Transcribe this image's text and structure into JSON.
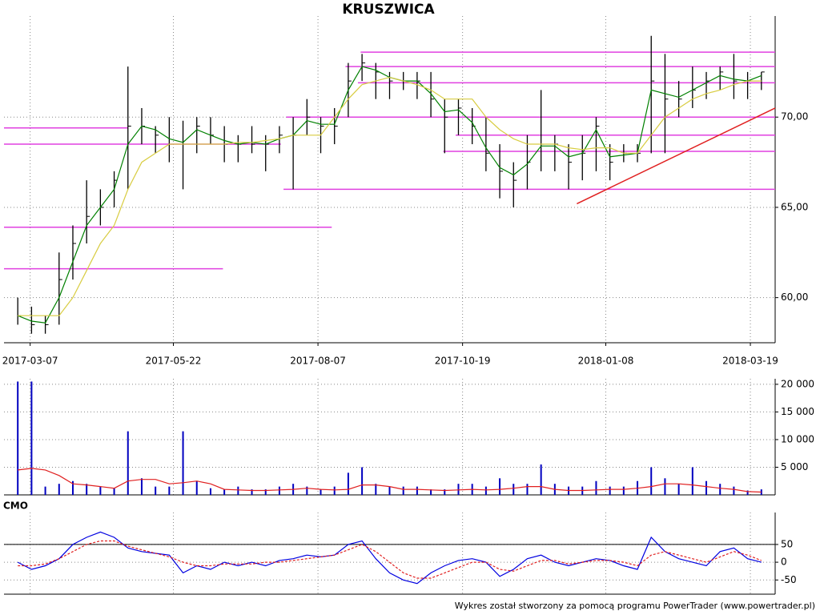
{
  "chart_data": [
    {
      "type": "ohlc",
      "title": "KRUSZWICA",
      "color": "#000000",
      "high": [
        60,
        59.5,
        59,
        62.5,
        64,
        66.5,
        66,
        67,
        72.8,
        70.5,
        69.5,
        70,
        69.8,
        70,
        70,
        69.5,
        69,
        69.5,
        69,
        69.5,
        70,
        71,
        70,
        70.5,
        73,
        73.5,
        73,
        72.5,
        72.5,
        72.5,
        72.5,
        71,
        71,
        70.5,
        70,
        68.5,
        67.5,
        69,
        71.5,
        69,
        68.5,
        69,
        70,
        68.5,
        68.5,
        68.5,
        74.5,
        73.5,
        72,
        72.8,
        72.5,
        72.8,
        73.5,
        72.5,
        72.5
      ],
      "low": [
        58.5,
        58,
        58,
        58.5,
        61,
        63,
        64,
        65,
        66,
        68.5,
        68,
        67.5,
        66,
        68,
        68.5,
        67.5,
        67.5,
        68,
        67,
        68,
        66,
        69,
        68,
        68.5,
        70,
        72,
        71,
        71,
        71.5,
        71,
        70,
        68,
        69,
        68.5,
        67,
        65.5,
        65,
        66,
        67,
        67,
        66,
        66.5,
        67,
        66.5,
        67.5,
        67.5,
        68,
        68,
        70,
        70.5,
        71,
        71.5,
        71,
        71,
        71.5
      ],
      "close": [
        59,
        58.5,
        58.5,
        61,
        63,
        64.5,
        65,
        66.5,
        69.5,
        69.5,
        69,
        68.5,
        68.5,
        69.5,
        69,
        68.5,
        68.5,
        68.5,
        68.5,
        69,
        69,
        70,
        69.5,
        69.5,
        72,
        73,
        72.5,
        72,
        72,
        72,
        71,
        70,
        70.5,
        69.5,
        68,
        67,
        66.5,
        67.5,
        68.5,
        68.5,
        67.5,
        68,
        69.5,
        67.5,
        68,
        68,
        72,
        71,
        71,
        71.5,
        72,
        72.5,
        72,
        72,
        72.5
      ],
      "lines": [
        {
          "color": "#008000",
          "values": [
            59,
            58.7,
            58.6,
            60,
            62,
            64,
            65,
            66,
            68.5,
            69.5,
            69.3,
            68.8,
            68.6,
            69.3,
            69,
            68.7,
            68.5,
            68.6,
            68.5,
            68.8,
            69,
            69.8,
            69.6,
            69.6,
            71.5,
            72.8,
            72.6,
            72.2,
            72,
            72,
            71.3,
            70.3,
            70.4,
            69.7,
            68.3,
            67.2,
            66.8,
            67.4,
            68.4,
            68.4,
            67.8,
            68,
            69.3,
            67.8,
            67.9,
            68,
            71.5,
            71.3,
            71.1,
            71.5,
            71.9,
            72.3,
            72.1,
            72,
            72.3
          ]
        },
        {
          "color": "#d8cc40",
          "values": [
            59,
            59,
            59,
            59,
            60,
            61.5,
            63,
            64,
            66,
            67.5,
            68,
            68.5,
            68.5,
            68.5,
            68.5,
            68.5,
            68.6,
            68.6,
            68.7,
            68.8,
            69,
            69,
            69,
            70,
            71,
            71.8,
            72,
            72.2,
            72,
            71.8,
            71.5,
            71,
            71,
            71,
            70,
            69.3,
            68.8,
            68.5,
            68.5,
            68.5,
            68.3,
            68.2,
            68.3,
            68.3,
            68,
            68,
            69,
            70,
            70.5,
            71,
            71.3,
            71.5,
            71.8,
            72,
            72
          ]
        }
      ],
      "hline_color": "#e040e0",
      "hlines": [
        {
          "value": 69.4,
          "x": [
            -1,
            8.0
          ]
        },
        {
          "value": 68.5,
          "x": [
            -1,
            19.1
          ]
        },
        {
          "value": 63.9,
          "x": [
            -1,
            22.8
          ]
        },
        {
          "value": 61.6,
          "x": [
            -1,
            14.9
          ]
        },
        {
          "value": 66.0,
          "x": [
            19.3,
            55
          ]
        },
        {
          "value": 73.6,
          "x": [
            24.9,
            55
          ]
        },
        {
          "value": 72.8,
          "x": [
            23.8,
            55
          ]
        },
        {
          "value": 71.9,
          "x": [
            24.7,
            55
          ]
        },
        {
          "value": 70.0,
          "x": [
            19.5,
            55
          ]
        },
        {
          "value": 69.0,
          "x": [
            31.8,
            55
          ]
        },
        {
          "value": 68.1,
          "x": [
            30.9,
            55
          ]
        }
      ],
      "trendline": {
        "x": [
          40.6,
          55
        ],
        "y": [
          65.2,
          70.5
        ],
        "color": "#e02020"
      },
      "xlim": [
        -1,
        55
      ],
      "ylim": [
        57.5,
        75.6
      ],
      "xticks": [
        {
          "value": 0.9,
          "label": "2017-03-07"
        },
        {
          "value": 11.3,
          "label": "2017-05-22"
        },
        {
          "value": 21.8,
          "label": "2017-08-07"
        },
        {
          "value": 32.3,
          "label": "2017-10-19"
        },
        {
          "value": 42.7,
          "label": "2018-01-08"
        },
        {
          "value": 53.2,
          "label": "2018-03-19"
        }
      ],
      "yticks": [
        {
          "value": 60,
          "label": "60,00"
        },
        {
          "value": 65,
          "label": "65,00"
        },
        {
          "value": 70,
          "label": "70,00"
        }
      ],
      "grid": true
    },
    {
      "type": "bar",
      "color": "#0000c0",
      "values": [
        20500,
        20500,
        1500,
        2000,
        2500,
        2000,
        1500,
        1200,
        11500,
        3000,
        1500,
        1500,
        11500,
        2500,
        1200,
        1000,
        1500,
        1000,
        1000,
        1500,
        2000,
        1500,
        1000,
        1500,
        4000,
        5000,
        2000,
        1500,
        1500,
        1500,
        1000,
        1000,
        2000,
        2000,
        1500,
        3000,
        2000,
        2000,
        5500,
        2000,
        1500,
        1500,
        2500,
        1500,
        1500,
        2500,
        5000,
        3000,
        2000,
        5000,
        2500,
        2000,
        1500,
        800,
        1000
      ],
      "lines": [
        {
          "color": "#e02020",
          "values": [
            4500,
            4800,
            4500,
            3500,
            2000,
            1800,
            1500,
            1200,
            2500,
            2800,
            2800,
            2000,
            2200,
            2500,
            2000,
            1000,
            900,
            800,
            800,
            900,
            1000,
            1200,
            1000,
            900,
            1000,
            1800,
            1800,
            1500,
            1000,
            1000,
            900,
            800,
            900,
            1000,
            900,
            1000,
            1200,
            1500,
            1500,
            1000,
            800,
            800,
            900,
            1000,
            1000,
            1200,
            1500,
            2000,
            2000,
            1800,
            1500,
            1200,
            1000,
            600,
            500
          ]
        }
      ],
      "xlim": [
        -1,
        55
      ],
      "ylim": [
        0,
        21000
      ],
      "yticks": [
        {
          "value": 5000,
          "label": "5 000"
        },
        {
          "value": 10000,
          "label": "10 000"
        },
        {
          "value": 15000,
          "label": "15 000"
        },
        {
          "value": 20000,
          "label": "20 000"
        }
      ],
      "grid": true
    },
    {
      "type": "line",
      "title": "CMO",
      "lines": [
        {
          "color": "#0000e0",
          "values": [
            0,
            -20,
            -10,
            10,
            50,
            70,
            85,
            70,
            40,
            30,
            25,
            20,
            -30,
            -10,
            -20,
            0,
            -10,
            0,
            -10,
            5,
            10,
            20,
            15,
            20,
            50,
            60,
            10,
            -30,
            -50,
            -60,
            -30,
            -10,
            5,
            10,
            0,
            -40,
            -20,
            10,
            20,
            0,
            -10,
            0,
            10,
            5,
            -10,
            -20,
            70,
            30,
            10,
            0,
            -10,
            30,
            40,
            10,
            0
          ]
        },
        {
          "color": "#e02020",
          "dashed": true,
          "values": [
            -10,
            -10,
            -5,
            10,
            30,
            50,
            60,
            60,
            45,
            35,
            25,
            15,
            0,
            -10,
            -10,
            -5,
            -5,
            -5,
            0,
            0,
            5,
            10,
            15,
            20,
            35,
            50,
            30,
            0,
            -30,
            -45,
            -45,
            -30,
            -15,
            0,
            0,
            -20,
            -25,
            -10,
            5,
            5,
            -5,
            0,
            5,
            5,
            0,
            -10,
            20,
            30,
            20,
            10,
            0,
            15,
            30,
            20,
            5
          ]
        }
      ],
      "reference_line": 50,
      "xlim": [
        -1,
        55
      ],
      "ylim": [
        -90,
        140
      ],
      "yticks": [
        -50,
        0,
        50
      ],
      "grid": true
    }
  ],
  "footer": "Wykres został stworzony za pomocą programu PowerTrader (www.powertrader.pl)"
}
